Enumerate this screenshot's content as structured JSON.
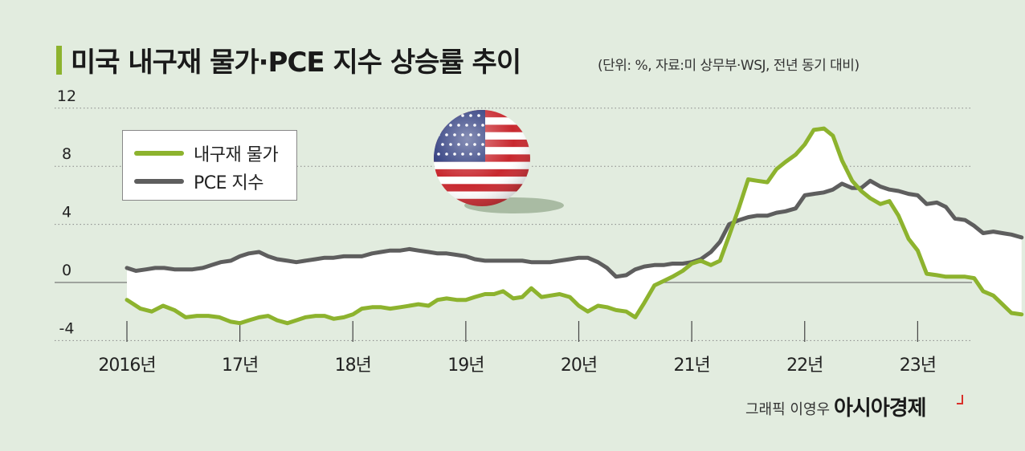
{
  "title": "미국 내구재 물가·PCE 지수 상승률 추이",
  "subtitle": "(단위: %, 자료:미 상무부·WSJ, 전년 동기 대비)",
  "credit": "그래픽 이영우",
  "brand": "아시아경제",
  "colors": {
    "background": "#e2ecdf",
    "durable_goods": "#8db32e",
    "pce": "#5e5e5e",
    "title_accent": "#8db32e"
  },
  "chart_data": {
    "type": "line",
    "y_ticks": [
      "12",
      "8",
      "4",
      "0",
      "-4"
    ],
    "ylim": [
      -4,
      12
    ],
    "x_tick_labels": [
      "2016년",
      "17년",
      "18년",
      "19년",
      "20년",
      "21년",
      "22년",
      "23년"
    ],
    "xlim": [
      2016,
      2024
    ],
    "grid": true,
    "legend_position": "top-left",
    "series": [
      {
        "name": "내구재 물가",
        "color": "#8db32e",
        "points": [
          [
            2016.0,
            -1.2
          ],
          [
            2016.12,
            -1.8
          ],
          [
            2016.22,
            -2.0
          ],
          [
            2016.32,
            -1.6
          ],
          [
            2016.42,
            -1.9
          ],
          [
            2016.52,
            -2.4
          ],
          [
            2016.62,
            -2.3
          ],
          [
            2016.72,
            -2.3
          ],
          [
            2016.82,
            -2.4
          ],
          [
            2016.92,
            -2.7
          ],
          [
            2017.0,
            -2.8
          ],
          [
            2017.08,
            -2.6
          ],
          [
            2017.17,
            -2.4
          ],
          [
            2017.25,
            -2.3
          ],
          [
            2017.33,
            -2.6
          ],
          [
            2017.42,
            -2.8
          ],
          [
            2017.5,
            -2.6
          ],
          [
            2017.58,
            -2.4
          ],
          [
            2017.67,
            -2.3
          ],
          [
            2017.75,
            -2.3
          ],
          [
            2017.83,
            -2.5
          ],
          [
            2017.92,
            -2.4
          ],
          [
            2018.0,
            -2.2
          ],
          [
            2018.08,
            -1.8
          ],
          [
            2018.17,
            -1.7
          ],
          [
            2018.25,
            -1.7
          ],
          [
            2018.33,
            -1.8
          ],
          [
            2018.42,
            -1.7
          ],
          [
            2018.5,
            -1.6
          ],
          [
            2018.58,
            -1.5
          ],
          [
            2018.67,
            -1.6
          ],
          [
            2018.75,
            -1.2
          ],
          [
            2018.83,
            -1.1
          ],
          [
            2018.92,
            -1.2
          ],
          [
            2019.0,
            -1.2
          ],
          [
            2019.08,
            -1.0
          ],
          [
            2019.17,
            -0.8
          ],
          [
            2019.25,
            -0.8
          ],
          [
            2019.33,
            -0.6
          ],
          [
            2019.42,
            -1.1
          ],
          [
            2019.5,
            -1.0
          ],
          [
            2019.58,
            -0.4
          ],
          [
            2019.67,
            -1.0
          ],
          [
            2019.75,
            -0.9
          ],
          [
            2019.83,
            -0.8
          ],
          [
            2019.92,
            -1.0
          ],
          [
            2020.0,
            -1.6
          ],
          [
            2020.08,
            -2.0
          ],
          [
            2020.17,
            -1.6
          ],
          [
            2020.25,
            -1.7
          ],
          [
            2020.33,
            -1.9
          ],
          [
            2020.42,
            -2.0
          ],
          [
            2020.5,
            -2.4
          ],
          [
            2020.58,
            -1.4
          ],
          [
            2020.67,
            -0.2
          ],
          [
            2020.75,
            0.1
          ],
          [
            2020.83,
            0.4
          ],
          [
            2020.92,
            0.8
          ],
          [
            2021.0,
            1.3
          ],
          [
            2021.08,
            1.5
          ],
          [
            2021.17,
            1.2
          ],
          [
            2021.25,
            1.5
          ],
          [
            2021.33,
            3.2
          ],
          [
            2021.42,
            5.2
          ],
          [
            2021.5,
            7.1
          ],
          [
            2021.58,
            7.0
          ],
          [
            2021.67,
            6.9
          ],
          [
            2021.75,
            7.8
          ],
          [
            2021.83,
            8.3
          ],
          [
            2021.92,
            8.8
          ],
          [
            2022.0,
            9.5
          ],
          [
            2022.08,
            10.5
          ],
          [
            2022.17,
            10.6
          ],
          [
            2022.25,
            10.1
          ],
          [
            2022.33,
            8.4
          ],
          [
            2022.42,
            7.0
          ],
          [
            2022.5,
            6.3
          ],
          [
            2022.58,
            5.8
          ],
          [
            2022.67,
            5.4
          ],
          [
            2022.75,
            5.6
          ],
          [
            2022.83,
            4.6
          ],
          [
            2022.92,
            3.0
          ],
          [
            2023.0,
            2.2
          ],
          [
            2023.08,
            0.6
          ],
          [
            2023.17,
            0.5
          ],
          [
            2023.25,
            0.4
          ],
          [
            2023.33,
            0.4
          ],
          [
            2023.42,
            0.4
          ],
          [
            2023.5,
            0.3
          ],
          [
            2023.58,
            -0.6
          ],
          [
            2023.67,
            -0.9
          ],
          [
            2023.75,
            -1.5
          ],
          [
            2023.83,
            -2.1
          ],
          [
            2023.92,
            -2.2
          ]
        ]
      },
      {
        "name": "PCE 지수",
        "color": "#5e5e5e",
        "points": [
          [
            2016.0,
            1.0
          ],
          [
            2016.08,
            0.8
          ],
          [
            2016.17,
            0.9
          ],
          [
            2016.25,
            1.0
          ],
          [
            2016.33,
            1.0
          ],
          [
            2016.42,
            0.9
          ],
          [
            2016.5,
            0.9
          ],
          [
            2016.58,
            0.9
          ],
          [
            2016.67,
            1.0
          ],
          [
            2016.75,
            1.2
          ],
          [
            2016.83,
            1.4
          ],
          [
            2016.92,
            1.5
          ],
          [
            2017.0,
            1.8
          ],
          [
            2017.08,
            2.0
          ],
          [
            2017.17,
            2.1
          ],
          [
            2017.25,
            1.8
          ],
          [
            2017.33,
            1.6
          ],
          [
            2017.42,
            1.5
          ],
          [
            2017.5,
            1.4
          ],
          [
            2017.58,
            1.5
          ],
          [
            2017.67,
            1.6
          ],
          [
            2017.75,
            1.7
          ],
          [
            2017.83,
            1.7
          ],
          [
            2017.92,
            1.8
          ],
          [
            2018.0,
            1.8
          ],
          [
            2018.08,
            1.8
          ],
          [
            2018.17,
            2.0
          ],
          [
            2018.25,
            2.1
          ],
          [
            2018.33,
            2.2
          ],
          [
            2018.42,
            2.2
          ],
          [
            2018.5,
            2.3
          ],
          [
            2018.58,
            2.2
          ],
          [
            2018.67,
            2.1
          ],
          [
            2018.75,
            2.0
          ],
          [
            2018.83,
            2.0
          ],
          [
            2018.92,
            1.9
          ],
          [
            2019.0,
            1.8
          ],
          [
            2019.08,
            1.6
          ],
          [
            2019.17,
            1.5
          ],
          [
            2019.25,
            1.5
          ],
          [
            2019.33,
            1.5
          ],
          [
            2019.42,
            1.5
          ],
          [
            2019.5,
            1.5
          ],
          [
            2019.58,
            1.4
          ],
          [
            2019.67,
            1.4
          ],
          [
            2019.75,
            1.4
          ],
          [
            2019.83,
            1.5
          ],
          [
            2019.92,
            1.6
          ],
          [
            2020.0,
            1.7
          ],
          [
            2020.08,
            1.7
          ],
          [
            2020.17,
            1.4
          ],
          [
            2020.25,
            1.0
          ],
          [
            2020.33,
            0.4
          ],
          [
            2020.42,
            0.5
          ],
          [
            2020.5,
            0.9
          ],
          [
            2020.58,
            1.1
          ],
          [
            2020.67,
            1.2
          ],
          [
            2020.75,
            1.2
          ],
          [
            2020.83,
            1.3
          ],
          [
            2020.92,
            1.3
          ],
          [
            2021.0,
            1.4
          ],
          [
            2021.08,
            1.6
          ],
          [
            2021.17,
            2.1
          ],
          [
            2021.25,
            2.8
          ],
          [
            2021.33,
            4.0
          ],
          [
            2021.42,
            4.3
          ],
          [
            2021.5,
            4.5
          ],
          [
            2021.58,
            4.6
          ],
          [
            2021.67,
            4.6
          ],
          [
            2021.75,
            4.8
          ],
          [
            2021.83,
            4.9
          ],
          [
            2021.92,
            5.1
          ],
          [
            2022.0,
            6.0
          ],
          [
            2022.08,
            6.1
          ],
          [
            2022.17,
            6.2
          ],
          [
            2022.25,
            6.4
          ],
          [
            2022.33,
            6.8
          ],
          [
            2022.42,
            6.5
          ],
          [
            2022.5,
            6.5
          ],
          [
            2022.58,
            7.0
          ],
          [
            2022.67,
            6.6
          ],
          [
            2022.75,
            6.4
          ],
          [
            2022.83,
            6.3
          ],
          [
            2022.92,
            6.1
          ],
          [
            2023.0,
            6.0
          ],
          [
            2023.08,
            5.4
          ],
          [
            2023.17,
            5.5
          ],
          [
            2023.25,
            5.2
          ],
          [
            2023.33,
            4.4
          ],
          [
            2023.42,
            4.3
          ],
          [
            2023.5,
            3.9
          ],
          [
            2023.58,
            3.4
          ],
          [
            2023.67,
            3.5
          ],
          [
            2023.75,
            3.4
          ],
          [
            2023.83,
            3.3
          ],
          [
            2023.92,
            3.1
          ]
        ]
      }
    ]
  }
}
